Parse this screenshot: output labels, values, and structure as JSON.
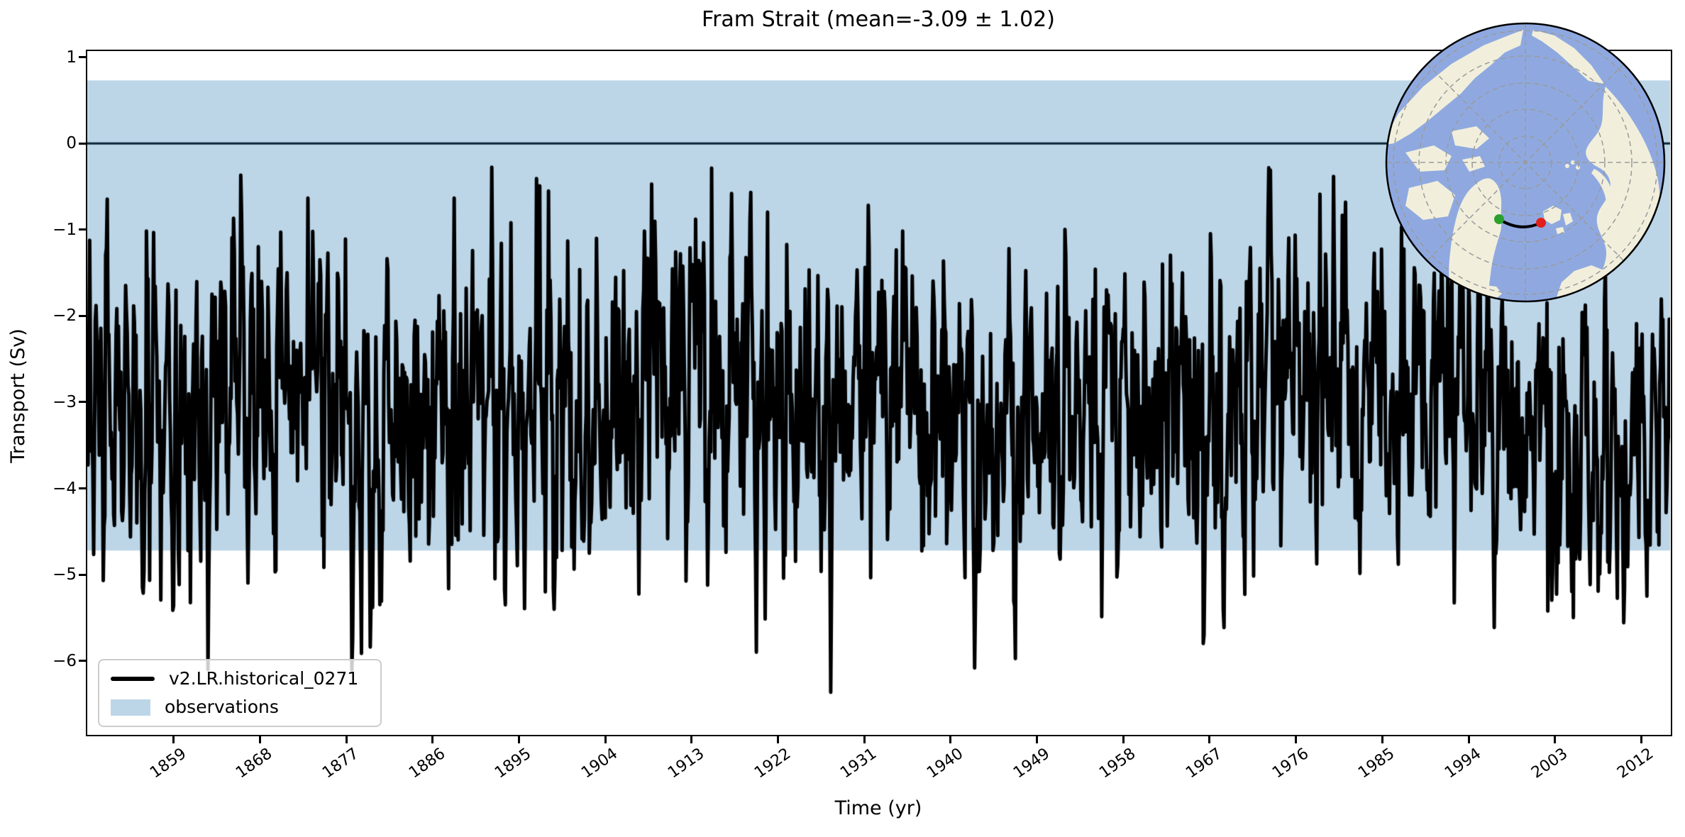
{
  "title": "Fram Strait (mean=-3.09 ± 1.02)",
  "axes": {
    "xlabel": "Time (yr)",
    "ylabel": "Transport (Sv)",
    "xlim": [
      1850,
      2015
    ],
    "ylim": [
      -6.84,
      1.07
    ],
    "xticks": [
      1859,
      1868,
      1877,
      1886,
      1895,
      1904,
      1913,
      1922,
      1931,
      1940,
      1949,
      1958,
      1967,
      1976,
      1985,
      1994,
      2003,
      2012
    ],
    "yticks": [
      {
        "label": "1",
        "value": 1
      },
      {
        "label": "0",
        "value": 0
      },
      {
        "label": "−1",
        "value": -1
      },
      {
        "label": "−2",
        "value": -2
      },
      {
        "label": "−3",
        "value": -3
      },
      {
        "label": "−4",
        "value": -4
      },
      {
        "label": "−5",
        "value": -5
      },
      {
        "label": "−6",
        "value": -6
      }
    ]
  },
  "legend": {
    "items": [
      {
        "label": "v2.LR.historical_0271",
        "swatch": "line",
        "color": "#000000"
      },
      {
        "label": "observations",
        "swatch": "patch",
        "color": "#bcd6e8"
      }
    ]
  },
  "chart_data": {
    "type": "line",
    "title": "Fram Strait (mean=-3.09 ± 1.02)",
    "xlabel": "Time (yr)",
    "ylabel": "Transport (Sv)",
    "xlim": [
      1850,
      2015
    ],
    "ylim": [
      -6.84,
      1.07
    ],
    "grid": false,
    "legend_position": "lower left",
    "series": [
      {
        "name": "v2.LR.historical_0271",
        "color": "#000000",
        "sampling": "monthly",
        "x_start": 1850.0,
        "x_end": 2014.92,
        "stats": {
          "mean": -3.09,
          "std": 1.02,
          "min": -6.5,
          "max": -0.27
        },
        "synthetic": {
          "seed": 20271,
          "n_points": 1980,
          "base_mean": -3.07,
          "ar1_phi": 0.42,
          "innovation_std": 0.82,
          "seasonal_amplitude": 0.58,
          "decadal": [
            {
              "amplitude": 0.33,
              "period_yr": 62,
              "phase": 0.8
            },
            {
              "amplitude": 0.22,
              "period_yr": 21,
              "phase": 2.1
            }
          ],
          "clip_high": -0.27,
          "clip_low": -6.5
        }
      }
    ],
    "observations_band": {
      "label": "observations",
      "low": -4.72,
      "high": 0.73,
      "color": "#bcd6e8"
    },
    "zero_line": {
      "value": 0,
      "color": "#092436"
    }
  },
  "inset_map": {
    "ocean_color": "#8fa9e0",
    "land_color": "#f1efdc",
    "graticule_color": "#9a9a9a",
    "border_color": "#000000",
    "transect_color": "#000000",
    "start_marker_color": "#2ca02c",
    "end_marker_color": "#e1201d"
  }
}
